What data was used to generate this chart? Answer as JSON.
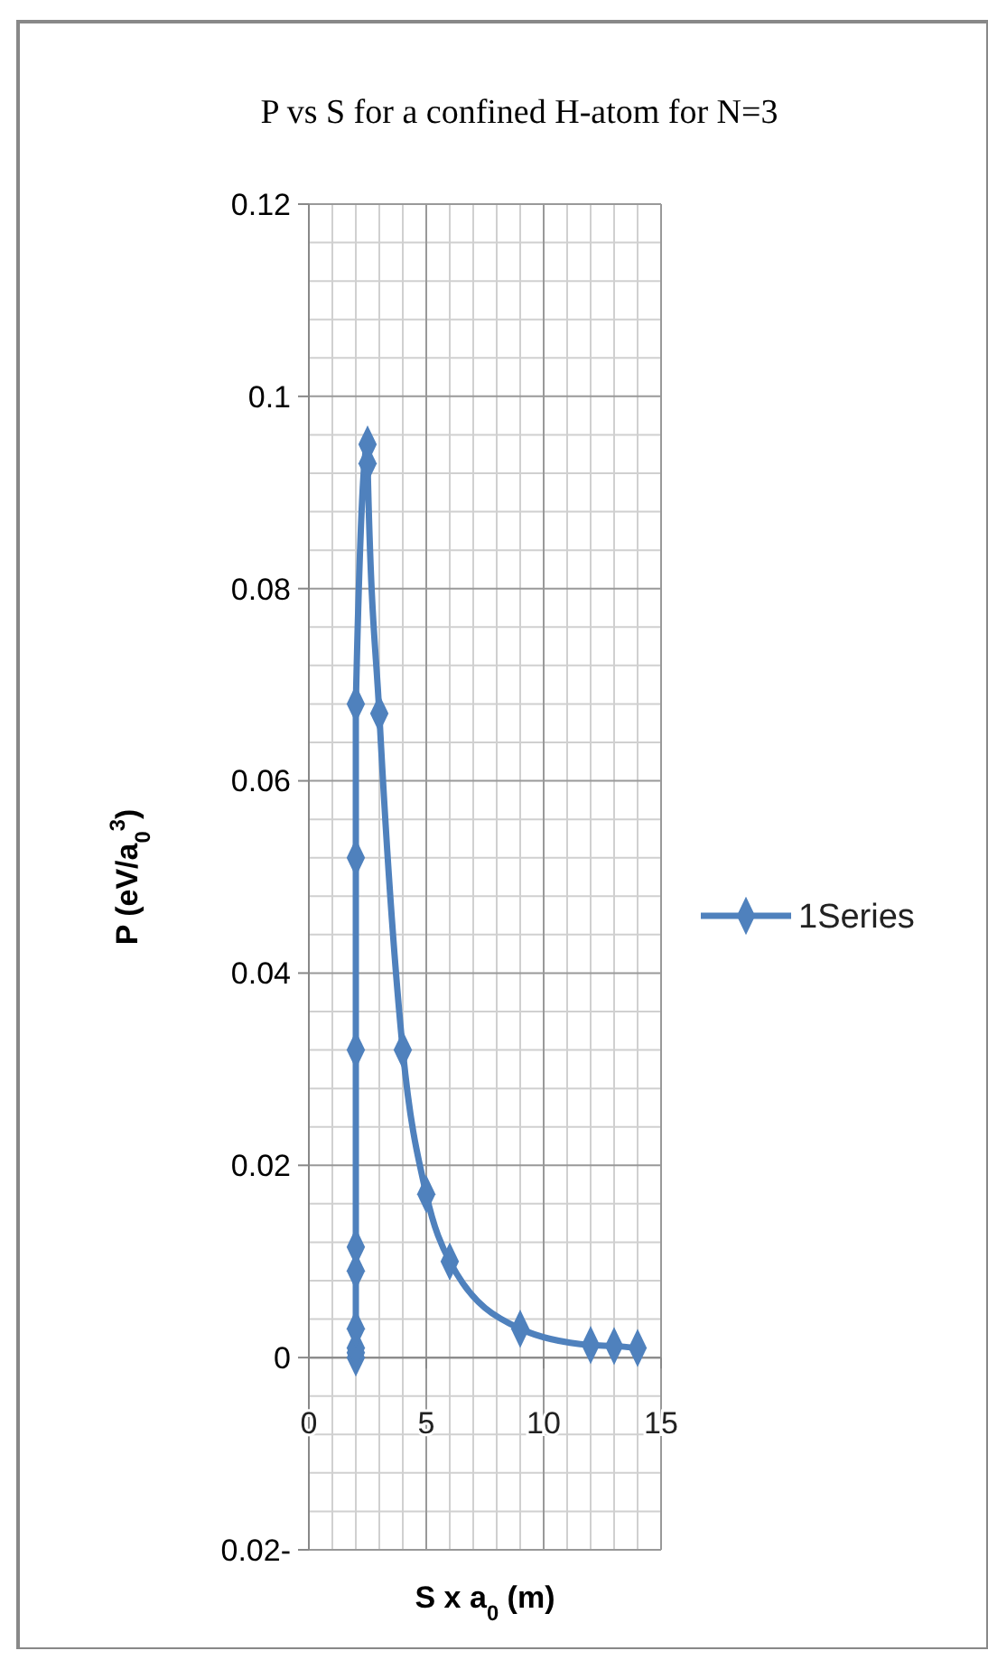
{
  "chart_data": {
    "type": "line",
    "title": "P vs S for a confined H-atom for N=3",
    "xlabel": "S x a$_{0}$ (m)",
    "ylabel": "P (eV/a$_{0}$$^{3}$)",
    "xlim": [
      0,
      15
    ],
    "xticks": [
      0,
      5,
      10,
      15
    ],
    "ylim": [
      -0.02,
      0.12
    ],
    "yticks": [
      {
        "value": -0.02,
        "label": "0.02-"
      },
      0,
      0.02,
      0.04,
      0.06,
      0.08,
      0.1,
      0.12
    ],
    "grid": true,
    "legend": "right",
    "marker": "diamond",
    "line_style": "solid",
    "series": [
      {
        "name": "1Series",
        "color": "#4f81bd",
        "x": [
          2,
          2,
          2,
          2,
          2,
          2,
          2,
          2,
          2,
          2.5,
          2.5,
          3,
          4,
          5,
          6,
          9,
          12,
          13,
          14
        ],
        "values": [
          0,
          0.0005,
          0.001,
          0.003,
          0.009,
          0.0115,
          0.032,
          0.052,
          0.068,
          0.095,
          0.093,
          0.067,
          0.032,
          0.017,
          0.01,
          0.003,
          0.0013,
          0.0012,
          0.001
        ]
      }
    ]
  }
}
